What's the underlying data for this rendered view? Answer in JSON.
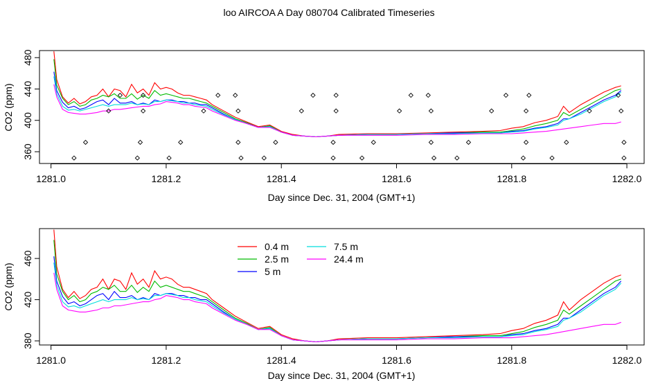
{
  "title": "loo AIRCOA A  Day 080704  Calibrated Timeseries",
  "colors": {
    "0.4 m": "#ff0000",
    "2.5 m": "#00bb00",
    "5 m": "#0000ff",
    "7.5 m": "#00dddd",
    "24.4 m": "#ff00ff"
  },
  "chart_data": [
    {
      "type": "line",
      "xlabel": "Day since Dec. 31, 2004 (GMT+1)",
      "ylabel": "CO2 (ppm)",
      "xlim": [
        1280.98,
        1282.03
      ],
      "ylim": [
        345,
        489
      ],
      "xticks": [
        "1281.0",
        "1281.2",
        "1281.4",
        "1281.6",
        "1281.8",
        "1282.0"
      ],
      "yticks": [
        "360",
        "400",
        "440",
        "480"
      ],
      "grid": false,
      "series": [
        {
          "name": "0.4 m",
          "x": [
            1281.005,
            1281.01,
            1281.02,
            1281.03,
            1281.04,
            1281.05,
            1281.06,
            1281.07,
            1281.08,
            1281.09,
            1281.1,
            1281.11,
            1281.12,
            1281.13,
            1281.14,
            1281.15,
            1281.16,
            1281.17,
            1281.18,
            1281.19,
            1281.2,
            1281.21,
            1281.22,
            1281.23,
            1281.24,
            1281.25,
            1281.26,
            1281.27,
            1281.28,
            1281.3,
            1281.32,
            1281.34,
            1281.36,
            1281.38,
            1281.4,
            1281.42,
            1281.44,
            1281.46,
            1281.48,
            1281.5,
            1281.55,
            1281.6,
            1281.65,
            1281.7,
            1281.75,
            1281.78,
            1281.8,
            1281.82,
            1281.84,
            1281.86,
            1281.88,
            1281.89,
            1281.9,
            1281.92,
            1281.94,
            1281.96,
            1281.98,
            1281.99
          ],
          "y": [
            488,
            452,
            430,
            422,
            428,
            421,
            424,
            430,
            432,
            440,
            430,
            440,
            438,
            430,
            446,
            435,
            440,
            432,
            448,
            440,
            442,
            440,
            435,
            432,
            432,
            430,
            428,
            426,
            420,
            412,
            404,
            398,
            392,
            394,
            386,
            382,
            380,
            379,
            380,
            382,
            383,
            383,
            384,
            385,
            386,
            387,
            390,
            392,
            397,
            400,
            405,
            418,
            410,
            420,
            428,
            436,
            442,
            444
          ]
        },
        {
          "name": "2.5 m",
          "x": [
            1281.005,
            1281.01,
            1281.02,
            1281.03,
            1281.04,
            1281.05,
            1281.06,
            1281.07,
            1281.08,
            1281.09,
            1281.1,
            1281.11,
            1281.12,
            1281.13,
            1281.14,
            1281.15,
            1281.16,
            1281.17,
            1281.18,
            1281.19,
            1281.2,
            1281.21,
            1281.22,
            1281.23,
            1281.24,
            1281.25,
            1281.26,
            1281.27,
            1281.28,
            1281.3,
            1281.32,
            1281.34,
            1281.36,
            1281.38,
            1281.4,
            1281.42,
            1281.44,
            1281.46,
            1281.48,
            1281.5,
            1281.55,
            1281.6,
            1281.65,
            1281.7,
            1281.75,
            1281.78,
            1281.8,
            1281.82,
            1281.84,
            1281.86,
            1281.88,
            1281.89,
            1281.9,
            1281.92,
            1281.94,
            1281.96,
            1281.98,
            1281.99
          ],
          "y": [
            478,
            445,
            428,
            420,
            424,
            418,
            420,
            426,
            428,
            432,
            430,
            434,
            428,
            428,
            434,
            427,
            432,
            428,
            438,
            432,
            434,
            432,
            430,
            428,
            428,
            426,
            424,
            422,
            418,
            410,
            402,
            397,
            391,
            393,
            385,
            381,
            380,
            379,
            380,
            381,
            382,
            382,
            383,
            384,
            385,
            385,
            387,
            389,
            393,
            396,
            400,
            410,
            406,
            414,
            422,
            430,
            438,
            440
          ]
        },
        {
          "name": "5 m",
          "x": [
            1281.005,
            1281.01,
            1281.02,
            1281.03,
            1281.04,
            1281.05,
            1281.06,
            1281.07,
            1281.08,
            1281.09,
            1281.1,
            1281.11,
            1281.12,
            1281.13,
            1281.14,
            1281.15,
            1281.16,
            1281.17,
            1281.18,
            1281.19,
            1281.2,
            1281.21,
            1281.22,
            1281.23,
            1281.24,
            1281.25,
            1281.26,
            1281.27,
            1281.28,
            1281.3,
            1281.32,
            1281.34,
            1281.36,
            1281.38,
            1281.4,
            1281.42,
            1281.44,
            1281.46,
            1281.48,
            1281.5,
            1281.55,
            1281.6,
            1281.65,
            1281.7,
            1281.75,
            1281.78,
            1281.8,
            1281.82,
            1281.84,
            1281.86,
            1281.88,
            1281.89,
            1281.9,
            1281.92,
            1281.94,
            1281.96,
            1281.98,
            1281.99
          ],
          "y": [
            462,
            438,
            423,
            416,
            418,
            414,
            416,
            420,
            424,
            426,
            420,
            428,
            422,
            422,
            424,
            420,
            422,
            420,
            426,
            424,
            426,
            426,
            424,
            424,
            422,
            422,
            420,
            420,
            416,
            408,
            401,
            396,
            391,
            392,
            385,
            381,
            380,
            379,
            380,
            381,
            382,
            382,
            383,
            384,
            384,
            384,
            386,
            387,
            390,
            392,
            396,
            402,
            402,
            410,
            418,
            426,
            432,
            438
          ]
        },
        {
          "name": "7.5 m",
          "x": [
            1281.005,
            1281.01,
            1281.02,
            1281.03,
            1281.04,
            1281.05,
            1281.06,
            1281.07,
            1281.08,
            1281.09,
            1281.1,
            1281.11,
            1281.12,
            1281.13,
            1281.14,
            1281.15,
            1281.16,
            1281.17,
            1281.18,
            1281.19,
            1281.2,
            1281.21,
            1281.22,
            1281.23,
            1281.24,
            1281.25,
            1281.26,
            1281.27,
            1281.28,
            1281.3,
            1281.32,
            1281.34,
            1281.36,
            1281.38,
            1281.4,
            1281.42,
            1281.44,
            1281.46,
            1281.48,
            1281.5,
            1281.55,
            1281.6,
            1281.65,
            1281.7,
            1281.75,
            1281.78,
            1281.8,
            1281.82,
            1281.84,
            1281.86,
            1281.88,
            1281.89,
            1281.9,
            1281.92,
            1281.94,
            1281.96,
            1281.98,
            1281.99
          ],
          "y": [
            456,
            434,
            418,
            413,
            414,
            412,
            414,
            416,
            418,
            420,
            418,
            420,
            420,
            420,
            422,
            420,
            421,
            420,
            424,
            424,
            426,
            425,
            424,
            422,
            422,
            420,
            419,
            418,
            414,
            407,
            401,
            396,
            391,
            392,
            385,
            381,
            380,
            379,
            380,
            381,
            382,
            382,
            383,
            383,
            384,
            384,
            385,
            386,
            389,
            391,
            394,
            400,
            402,
            408,
            416,
            424,
            430,
            436
          ]
        },
        {
          "name": "24.4 m",
          "x": [
            1281.005,
            1281.01,
            1281.02,
            1281.03,
            1281.04,
            1281.05,
            1281.06,
            1281.07,
            1281.08,
            1281.09,
            1281.1,
            1281.11,
            1281.12,
            1281.13,
            1281.14,
            1281.15,
            1281.16,
            1281.17,
            1281.18,
            1281.19,
            1281.2,
            1281.21,
            1281.22,
            1281.23,
            1281.24,
            1281.25,
            1281.26,
            1281.27,
            1281.28,
            1281.3,
            1281.32,
            1281.34,
            1281.36,
            1281.38,
            1281.4,
            1281.42,
            1281.44,
            1281.46,
            1281.48,
            1281.5,
            1281.55,
            1281.6,
            1281.65,
            1281.7,
            1281.75,
            1281.78,
            1281.8,
            1281.82,
            1281.84,
            1281.86,
            1281.88,
            1281.89,
            1281.9,
            1281.92,
            1281.94,
            1281.96,
            1281.98,
            1281.99
          ],
          "y": [
            446,
            430,
            414,
            410,
            409,
            408,
            408,
            409,
            410,
            412,
            412,
            414,
            414,
            415,
            416,
            417,
            418,
            418,
            420,
            421,
            424,
            423,
            422,
            420,
            420,
            418,
            417,
            416,
            412,
            406,
            400,
            396,
            391,
            391,
            385,
            381,
            380,
            379,
            380,
            381,
            381,
            381,
            382,
            382,
            383,
            383,
            383,
            384,
            385,
            386,
            388,
            389,
            390,
            392,
            394,
            396,
            396,
            398
          ]
        }
      ],
      "calibration_points": {
        "x": [
          1281.04,
          1281.06,
          1281.1,
          1281.12,
          1281.15,
          1281.155,
          1281.16,
          1281.16,
          1281.205,
          1281.225,
          1281.265,
          1281.29,
          1281.32,
          1281.325,
          1281.325,
          1281.33,
          1281.37,
          1281.39,
          1281.435,
          1281.455,
          1281.49,
          1281.49,
          1281.495,
          1281.495,
          1281.54,
          1281.56,
          1281.605,
          1281.625,
          1281.655,
          1281.66,
          1281.66,
          1281.665,
          1281.705,
          1281.725,
          1281.765,
          1281.79,
          1281.82,
          1281.825,
          1281.825,
          1281.83,
          1281.87,
          1281.895,
          1281.935,
          1281.985,
          1281.99,
          1281.995,
          1281.995
        ],
        "y": [
          352,
          372,
          412,
          432,
          352,
          372,
          412,
          432,
          352,
          372,
          412,
          432,
          432,
          412,
          372,
          352,
          352,
          372,
          412,
          432,
          352,
          372,
          412,
          432,
          352,
          372,
          412,
          432,
          432,
          412,
          372,
          352,
          352,
          372,
          412,
          432,
          352,
          372,
          412,
          432,
          352,
          372,
          412,
          432,
          412,
          372,
          352
        ]
      }
    },
    {
      "type": "line",
      "xlabel": "Day since Dec. 31, 2004 (GMT+1)",
      "ylabel": "CO2 (ppm)",
      "xlim": [
        1280.98,
        1282.03
      ],
      "ylim": [
        376,
        489
      ],
      "xticks": [
        "1281.0",
        "1281.2",
        "1281.4",
        "1281.6",
        "1281.8",
        "1282.0"
      ],
      "yticks": [
        "380",
        "420",
        "460"
      ],
      "grid": false,
      "legend": "top-left",
      "legend_labels": [
        "0.4 m",
        "2.5 m",
        "5 m",
        "7.5 m",
        "24.4 m"
      ],
      "series_ref": "same as chart 1 series (0.4 m, 2.5 m, 5 m, 7.5 m, 24.4 m)"
    }
  ]
}
